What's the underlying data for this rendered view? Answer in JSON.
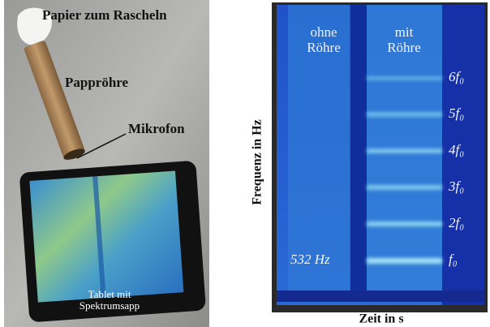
{
  "photo": {
    "labels": {
      "paper": "Papier zum Rascheln",
      "tube": "Pappröhre",
      "microphone": "Mikrofon",
      "tablet": [
        "Tablet mit",
        "Spektrumsapp"
      ]
    }
  },
  "spectrogram": {
    "conditions": [
      [
        "ohne",
        "Röhre"
      ],
      [
        "mit",
        "Röhre"
      ]
    ],
    "harmonics": [
      "6f₀",
      "5f₀",
      "4f₀",
      "3f₀",
      "2f₀",
      "f₀"
    ],
    "fundamental": "532 Hz",
    "y_label": "Frequenz in Hz",
    "x_label": "Zeit in s"
  }
}
